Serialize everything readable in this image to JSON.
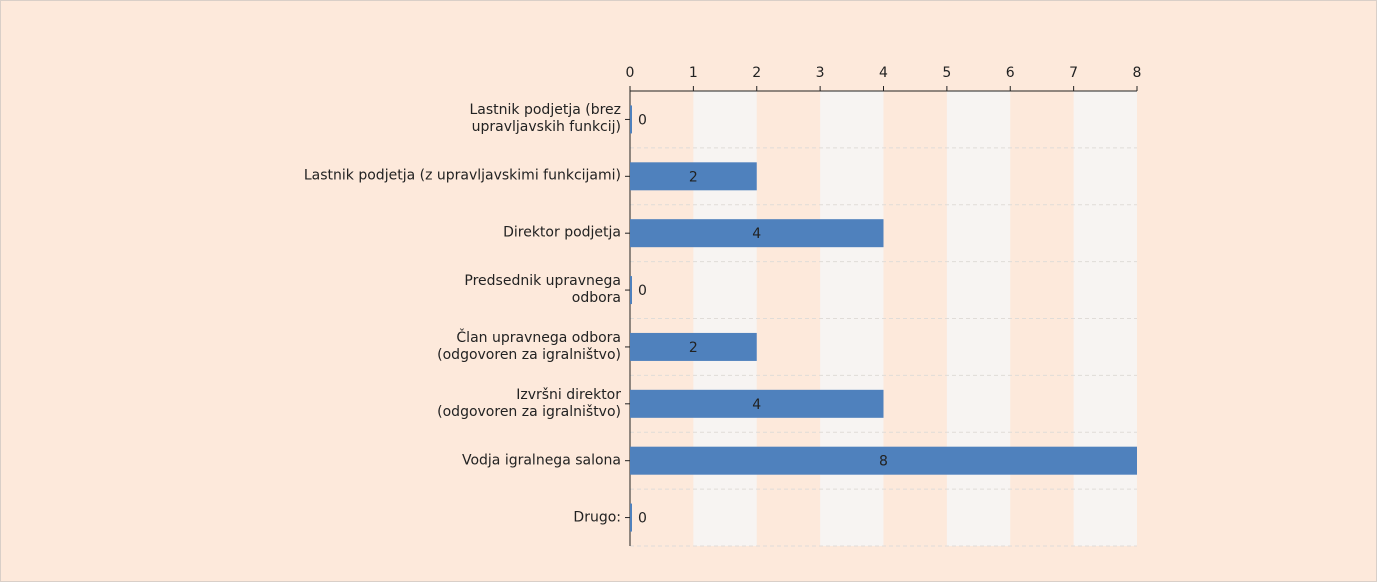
{
  "chart_data": {
    "type": "bar",
    "orientation": "horizontal",
    "categories": [
      "Lastnik podjetja (brez\nupravljavskih funkcij)",
      "Lastnik podjetja (z upravljavskimi funkcijami)",
      "Direktor podjetja",
      "Predsednik upravnega\nodbora",
      "Član upravnega odbora\n(odgovoren za igralništvo)",
      "Izvršni direktor\n(odgovoren za igralništvo)",
      "Vodja igralnega salona",
      "Drugo:"
    ],
    "values": [
      0,
      2,
      4,
      0,
      2,
      4,
      8,
      0
    ],
    "color": "#4f81bd",
    "xlim": [
      0,
      8
    ],
    "xticks": [
      0,
      1,
      2,
      3,
      4,
      5,
      6,
      7,
      8
    ]
  }
}
